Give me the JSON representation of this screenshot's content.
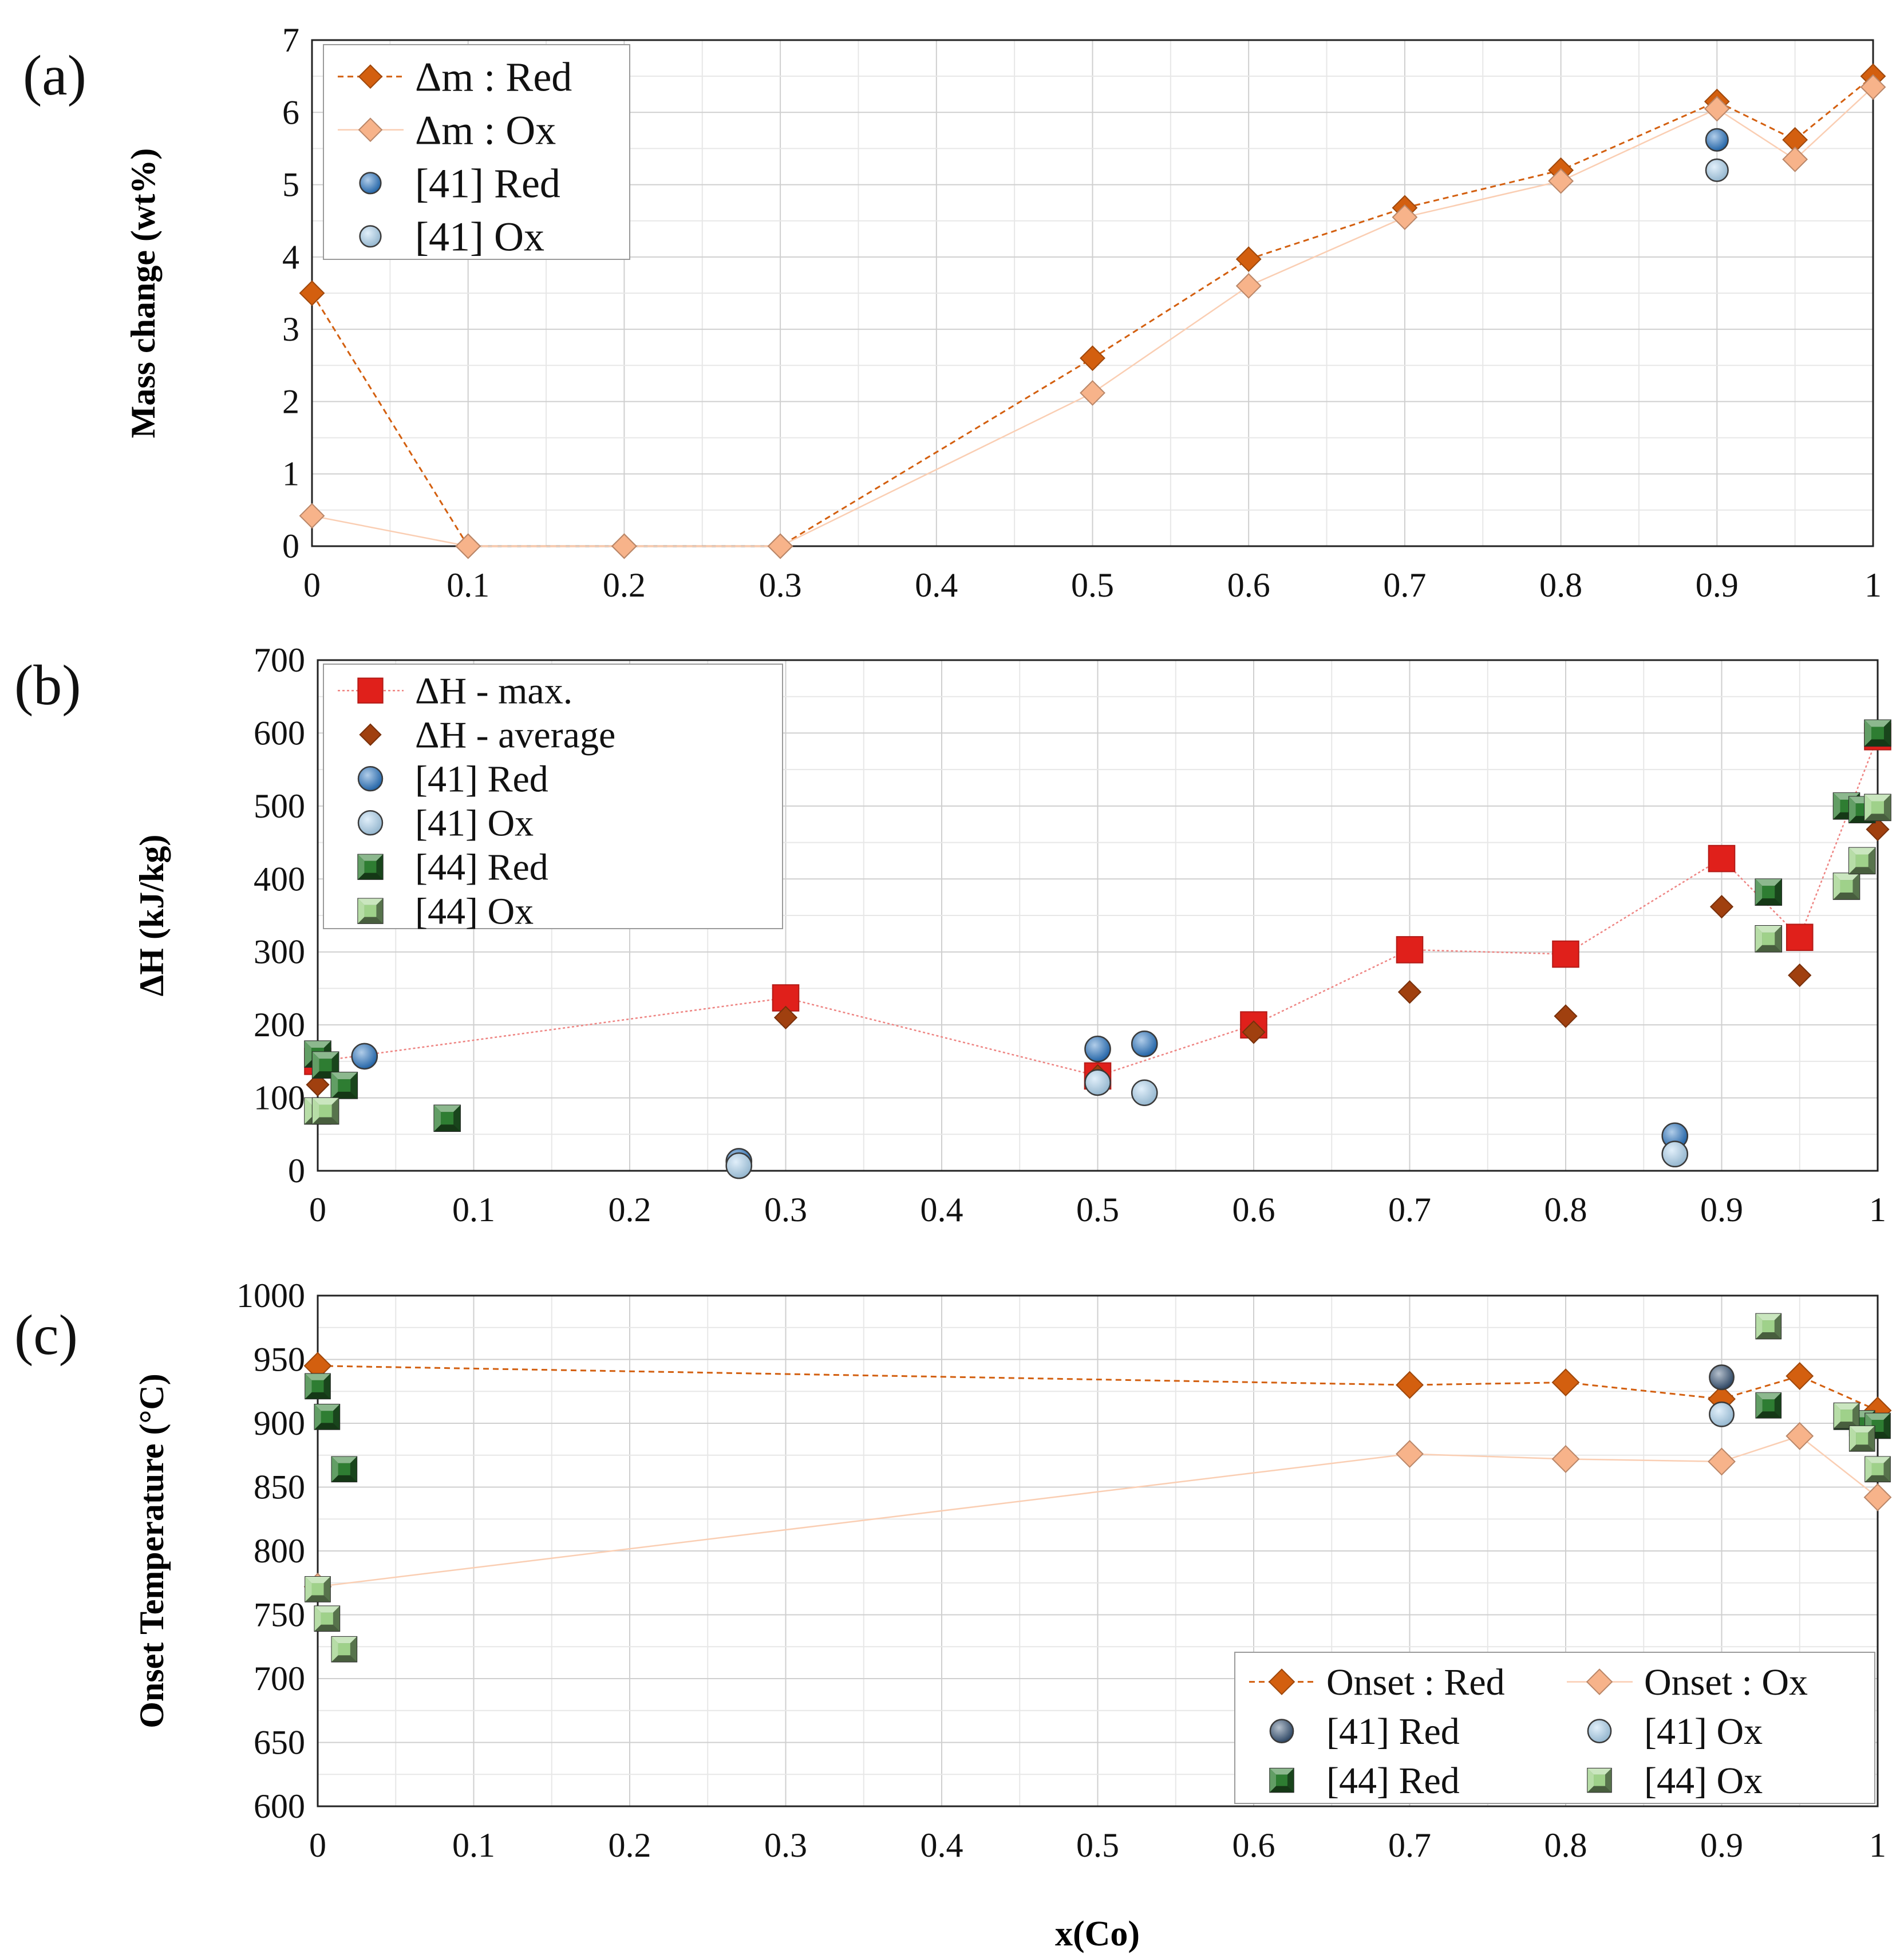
{
  "figure": {
    "xlabel": "x(Co)"
  },
  "colors": {
    "red_orange": "#d35f0f",
    "light_orange": "#f7b38a",
    "ref41_red": "#1f6fc0",
    "ref41_ox": "#a9d2f0",
    "ref41_red_dark": "#2c4a6e",
    "ref44_red": "#2e7d32",
    "ref44_ox": "#9fd18a",
    "max_red": "#e0201b",
    "avg_brown": "#a0400f",
    "grid": "#d0d0d0"
  },
  "chart_data": [
    {
      "id": "a",
      "type": "scatter",
      "panel_label": "(a)",
      "ylabel": "Mass change (wt%)",
      "xlim": [
        0,
        1
      ],
      "ylim": [
        0,
        7
      ],
      "xticks": [
        "0",
        "0.1",
        "0.2",
        "0.3",
        "0.4",
        "0.5",
        "0.6",
        "0.7",
        "0.8",
        "0.9",
        "1"
      ],
      "yticks": [
        "0",
        "1",
        "2",
        "3",
        "4",
        "5",
        "6",
        "7"
      ],
      "legend_position": "top-left",
      "series": [
        {
          "name": "Δm : Red",
          "marker": "diamond",
          "color": "#d35f0f",
          "line": "dashed",
          "x": [
            0,
            0.1,
            0.2,
            0.3,
            0.5,
            0.6,
            0.7,
            0.8,
            0.9,
            0.95,
            1
          ],
          "y": [
            3.5,
            0,
            0,
            0,
            2.6,
            3.97,
            4.68,
            5.2,
            6.15,
            5.62,
            6.5
          ]
        },
        {
          "name": "Δm : Ox",
          "marker": "diamond",
          "color": "#f7b38a",
          "line": "thin",
          "x": [
            0,
            0.1,
            0.2,
            0.3,
            0.5,
            0.6,
            0.7,
            0.8,
            0.9,
            0.95,
            1
          ],
          "y": [
            0.42,
            0,
            0,
            0,
            2.12,
            3.6,
            4.55,
            5.05,
            6.05,
            5.35,
            6.35
          ]
        },
        {
          "name": "[41] Red",
          "marker": "circle",
          "color": "#1f6fc0",
          "x": [
            0.9
          ],
          "y": [
            5.62
          ]
        },
        {
          "name": "[41] Ox",
          "marker": "circle",
          "color": "#a9d2f0",
          "x": [
            0.9
          ],
          "y": [
            5.2
          ]
        }
      ]
    },
    {
      "id": "b",
      "type": "scatter",
      "panel_label": "(b)",
      "ylabel": "ΔH (kJ/kg)",
      "xlim": [
        0,
        1
      ],
      "ylim": [
        0,
        700
      ],
      "xticks": [
        "0",
        "0.1",
        "0.2",
        "0.3",
        "0.4",
        "0.5",
        "0.6",
        "0.7",
        "0.8",
        "0.9",
        "1"
      ],
      "yticks": [
        "0",
        "100",
        "200",
        "300",
        "400",
        "500",
        "600",
        "700"
      ],
      "legend_position": "top-left",
      "series": [
        {
          "name": "ΔH - max.",
          "marker": "square",
          "color": "#e0201b",
          "line": "thin-red",
          "x": [
            0,
            0.3,
            0.5,
            0.6,
            0.7,
            0.8,
            0.9,
            0.95,
            1
          ],
          "y": [
            150,
            237,
            130,
            200,
            303,
            297,
            428,
            320,
            595
          ]
        },
        {
          "name": "ΔH - average",
          "marker": "smalldiamond",
          "color": "#a0400f",
          "x": [
            0,
            0.3,
            0.5,
            0.6,
            0.7,
            0.8,
            0.9,
            0.95,
            1
          ],
          "y": [
            118,
            210,
            130,
            190,
            245,
            212,
            362,
            268,
            468
          ]
        },
        {
          "name": "[41] Red",
          "marker": "circle",
          "color": "#1f6fc0",
          "x": [
            0.03,
            0.27,
            0.5,
            0.53,
            0.87
          ],
          "y": [
            157,
            13,
            167,
            174,
            48
          ]
        },
        {
          "name": "[41] Ox",
          "marker": "circle",
          "color": "#a9d2f0",
          "x": [
            0.27,
            0.5,
            0.53,
            0.87
          ],
          "y": [
            7,
            121,
            107,
            23
          ]
        },
        {
          "name": "[44] Red",
          "marker": "bevelsquare",
          "color": "#2e7d32",
          "x": [
            0,
            0.005,
            0.017,
            0.083,
            0.93,
            0.98,
            0.99,
            1
          ],
          "y": [
            160,
            145,
            117,
            72,
            382,
            500,
            495,
            600
          ]
        },
        {
          "name": "[44] Ox",
          "marker": "bevelsquare",
          "color": "#9fd18a",
          "x": [
            0,
            0.005,
            0.93,
            0.98,
            0.99,
            1
          ],
          "y": [
            82,
            82,
            318,
            390,
            425,
            498
          ]
        }
      ]
    },
    {
      "id": "c",
      "type": "scatter",
      "panel_label": "(c)",
      "ylabel": "Onset Temperature (°C)",
      "xlim": [
        0,
        1
      ],
      "ylim": [
        600,
        1000
      ],
      "xticks": [
        "0",
        "0.1",
        "0.2",
        "0.3",
        "0.4",
        "0.5",
        "0.6",
        "0.7",
        "0.8",
        "0.9",
        "1"
      ],
      "yticks": [
        "600",
        "650",
        "700",
        "750",
        "800",
        "850",
        "900",
        "950",
        "1000"
      ],
      "legend_position": "bottom-right",
      "series": [
        {
          "name": "Onset : Red",
          "marker": "diamond",
          "color": "#d35f0f",
          "line": "dashed",
          "x": [
            0,
            0.7,
            0.8,
            0.9,
            0.95,
            1
          ],
          "y": [
            945,
            930,
            932,
            919,
            937,
            910
          ]
        },
        {
          "name": "Onset : Ox",
          "marker": "diamond",
          "color": "#f7b38a",
          "line": "thin",
          "x": [
            0,
            0.7,
            0.8,
            0.9,
            0.95,
            1
          ],
          "y": [
            772,
            876,
            872,
            870,
            890,
            842
          ]
        },
        {
          "name": "[41] Red",
          "marker": "circle",
          "color": "#2c4a6e",
          "x": [
            0.9
          ],
          "y": [
            936
          ]
        },
        {
          "name": "[41] Ox",
          "marker": "circle",
          "color": "#a9d2f0",
          "x": [
            0.9
          ],
          "y": [
            907
          ]
        },
        {
          "name": "[44] Red",
          "marker": "bevelsquare",
          "color": "#2e7d32",
          "x": [
            0,
            0.006,
            0.017,
            0.93,
            0.98,
            0.99,
            1
          ],
          "y": [
            929,
            905,
            864,
            914,
            905,
            900,
            898
          ]
        },
        {
          "name": "[44] Ox",
          "marker": "bevelsquare",
          "color": "#9fd18a",
          "x": [
            0,
            0.006,
            0.017,
            0.93,
            0.98,
            0.99,
            1
          ],
          "y": [
            770,
            747,
            723,
            976,
            906,
            888,
            864
          ]
        }
      ]
    }
  ]
}
